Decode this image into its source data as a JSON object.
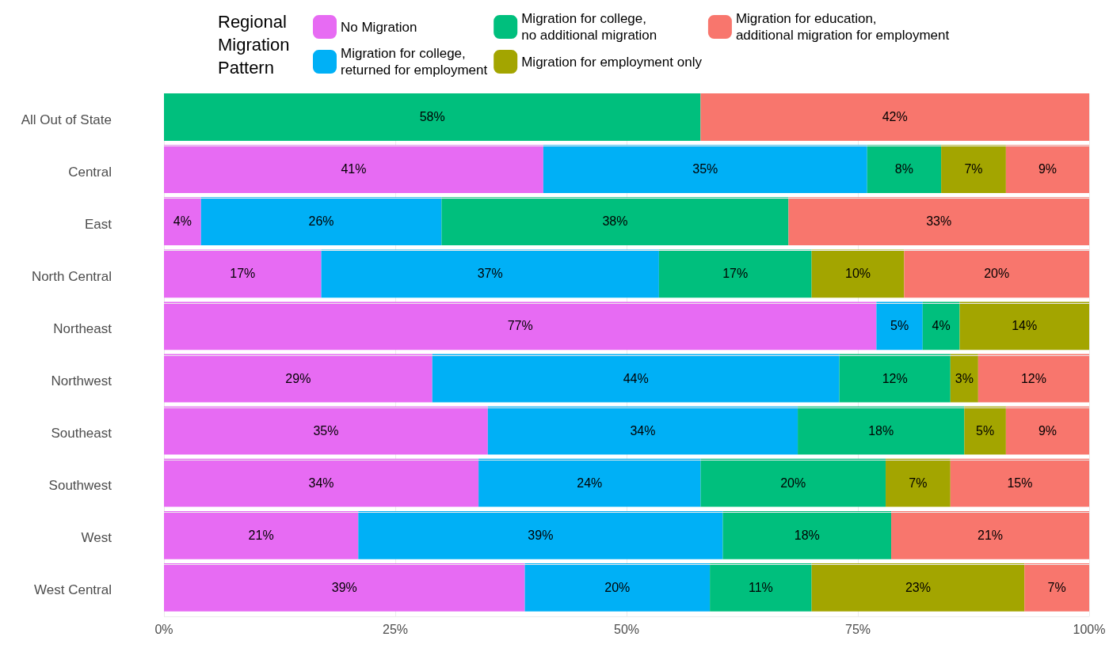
{
  "chart_data": {
    "type": "bar",
    "orientation": "horizontal",
    "stacked": true,
    "legend_title": "Regional Migration Pattern",
    "legend": "top",
    "grid": true,
    "categories": [
      "All Out of State",
      "Central",
      "East",
      "North Central",
      "Northeast",
      "Northwest",
      "Southeast",
      "Southwest",
      "West",
      "West Central"
    ],
    "xlim": [
      0,
      100
    ],
    "xticks": [
      {
        "value": 0,
        "label": "0%"
      },
      {
        "value": 25,
        "label": "25%"
      },
      {
        "value": 50,
        "label": "50%"
      },
      {
        "value": 75,
        "label": "75%"
      },
      {
        "value": 100,
        "label": "100%"
      }
    ],
    "series": [
      {
        "name": "No Migration",
        "color": "#e76bf3",
        "values": [
          null,
          41,
          4,
          17,
          77,
          29,
          35,
          34,
          21,
          39
        ],
        "value_labels": [
          null,
          "41%",
          "4%",
          "17%",
          "77%",
          "29%",
          "35%",
          "34%",
          "21%",
          "39%"
        ]
      },
      {
        "name": "Migration for college, returned for employment",
        "color": "#00b0f6",
        "values": [
          null,
          35,
          26,
          36.5,
          5,
          44,
          33.5,
          24,
          39.4,
          20
        ],
        "value_labels": [
          null,
          "35%",
          "26%",
          "37%",
          "5%",
          "44%",
          "34%",
          "24%",
          "39%",
          "20%"
        ]
      },
      {
        "name": "Migration for college, no additional migration",
        "color": "#00bf7d",
        "values": [
          58,
          8,
          37.5,
          16.5,
          4,
          12,
          18,
          20,
          18.2,
          11
        ],
        "value_labels": [
          "58%",
          "8%",
          "38%",
          "17%",
          "4%",
          "12%",
          "18%",
          "20%",
          "18%",
          "11%"
        ]
      },
      {
        "name": "Migration for employment only",
        "color": "#a3a500",
        "values": [
          null,
          7,
          null,
          10,
          14,
          3,
          4.5,
          7,
          null,
          23
        ],
        "value_labels": [
          null,
          "7%",
          null,
          "10%",
          "14%",
          "3%",
          "5%",
          "7%",
          null,
          "23%"
        ]
      },
      {
        "name": "Migration for education, additional migration for employment",
        "color": "#f8766d",
        "values": [
          42,
          9,
          32.5,
          20,
          null,
          12,
          9,
          15,
          21.4,
          7
        ],
        "value_labels": [
          "42%",
          "9%",
          "33%",
          "20%",
          null,
          "12%",
          "9%",
          "15%",
          "21%",
          "7%"
        ]
      }
    ]
  }
}
